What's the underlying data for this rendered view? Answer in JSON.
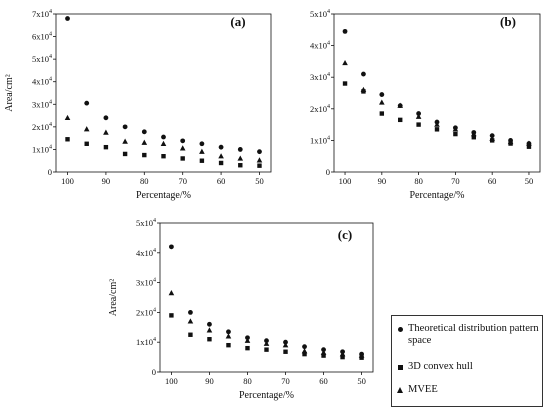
{
  "legend": [
    {
      "name": "Theoretical distribution pattern space",
      "marker": "circle"
    },
    {
      "name": "3D convex hull",
      "marker": "square"
    },
    {
      "name": "MVEE",
      "marker": "triangle"
    }
  ],
  "colors": {
    "marker": "#111111",
    "axis": "#111111"
  },
  "chart_data": [
    {
      "type": "scatter",
      "panel_label": "(a)",
      "xlabel": "Percentage/%",
      "ylabel": "Area/cm²",
      "xlim": [
        103,
        47
      ],
      "ylim": [
        0,
        70000
      ],
      "xticks": [
        100,
        90,
        80,
        70,
        60,
        50
      ],
      "yticks": [
        {
          "v": 0,
          "mant": "0",
          "exp": ""
        },
        {
          "v": 10000,
          "mant": "1x10",
          "exp": "4"
        },
        {
          "v": 20000,
          "mant": "2x10",
          "exp": "4"
        },
        {
          "v": 30000,
          "mant": "3x10",
          "exp": "4"
        },
        {
          "v": 40000,
          "mant": "4x10",
          "exp": "4"
        },
        {
          "v": 50000,
          "mant": "5x10",
          "exp": "4"
        },
        {
          "v": 60000,
          "mant": "6x10",
          "exp": "4"
        },
        {
          "v": 70000,
          "mant": "7x10",
          "exp": "4"
        }
      ],
      "x": [
        100,
        95,
        90,
        85,
        80,
        75,
        70,
        65,
        60,
        55,
        50
      ],
      "series": [
        {
          "name": "Theoretical distribution pattern space",
          "marker": "circle",
          "values": [
            68000,
            30500,
            24000,
            20000,
            17800,
            15500,
            13800,
            12500,
            11000,
            10000,
            9000
          ]
        },
        {
          "name": "3D convex hull",
          "marker": "square",
          "values": [
            14500,
            12500,
            11000,
            8000,
            7500,
            7000,
            6000,
            5000,
            4000,
            3000,
            2800
          ]
        },
        {
          "name": "MVEE",
          "marker": "triangle",
          "values": [
            24000,
            19000,
            17500,
            13500,
            13000,
            12500,
            10500,
            9000,
            7000,
            6000,
            5200
          ]
        }
      ]
    },
    {
      "type": "scatter",
      "panel_label": "(b)",
      "xlabel": "Percentage/%",
      "ylabel": "",
      "xlim": [
        103,
        47
      ],
      "ylim": [
        0,
        50000
      ],
      "xticks": [
        100,
        90,
        80,
        70,
        60,
        50
      ],
      "yticks": [
        {
          "v": 0,
          "mant": "0",
          "exp": ""
        },
        {
          "v": 10000,
          "mant": "1x10",
          "exp": "4"
        },
        {
          "v": 20000,
          "mant": "2x10",
          "exp": "4"
        },
        {
          "v": 30000,
          "mant": "3x10",
          "exp": "4"
        },
        {
          "v": 40000,
          "mant": "4x10",
          "exp": "4"
        },
        {
          "v": 50000,
          "mant": "5x10",
          "exp": "4"
        }
      ],
      "x": [
        100,
        95,
        90,
        85,
        80,
        75,
        70,
        65,
        60,
        55,
        50
      ],
      "series": [
        {
          "name": "Theoretical distribution pattern space",
          "marker": "circle",
          "values": [
            44500,
            31000,
            24500,
            21000,
            18500,
            15800,
            14000,
            12500,
            11500,
            10000,
            9000
          ]
        },
        {
          "name": "3D convex hull",
          "marker": "square",
          "values": [
            28000,
            25500,
            18500,
            16500,
            15000,
            13500,
            12000,
            11000,
            10000,
            9000,
            8000
          ]
        },
        {
          "name": "MVEE",
          "marker": "triangle",
          "values": [
            34500,
            26000,
            22000,
            21000,
            17500,
            15000,
            13500,
            12000,
            10500,
            9500,
            9000
          ]
        }
      ]
    },
    {
      "type": "scatter",
      "panel_label": "(c)",
      "xlabel": "Percentage/%",
      "ylabel": "Area/cm²",
      "xlim": [
        103,
        47
      ],
      "ylim": [
        0,
        50000
      ],
      "xticks": [
        100,
        90,
        80,
        70,
        60,
        50
      ],
      "yticks": [
        {
          "v": 0,
          "mant": "0",
          "exp": ""
        },
        {
          "v": 10000,
          "mant": "1x10",
          "exp": "4"
        },
        {
          "v": 20000,
          "mant": "2x10",
          "exp": "4"
        },
        {
          "v": 30000,
          "mant": "3x10",
          "exp": "4"
        },
        {
          "v": 40000,
          "mant": "4x10",
          "exp": "4"
        },
        {
          "v": 50000,
          "mant": "5x10",
          "exp": "4"
        }
      ],
      "x": [
        100,
        95,
        90,
        85,
        80,
        75,
        70,
        65,
        60,
        55,
        50
      ],
      "series": [
        {
          "name": "Theoretical distribution pattern space",
          "marker": "circle",
          "values": [
            42000,
            20000,
            16000,
            13500,
            11500,
            10500,
            10000,
            8500,
            7500,
            6800,
            6000
          ]
        },
        {
          "name": "3D convex hull",
          "marker": "square",
          "values": [
            19000,
            12500,
            11000,
            9000,
            8000,
            7500,
            6800,
            6000,
            5500,
            5000,
            4800
          ]
        },
        {
          "name": "MVEE",
          "marker": "triangle",
          "values": [
            26500,
            17000,
            14000,
            12000,
            10500,
            9500,
            9000,
            7000,
            6500,
            6000,
            5500
          ]
        }
      ]
    }
  ]
}
